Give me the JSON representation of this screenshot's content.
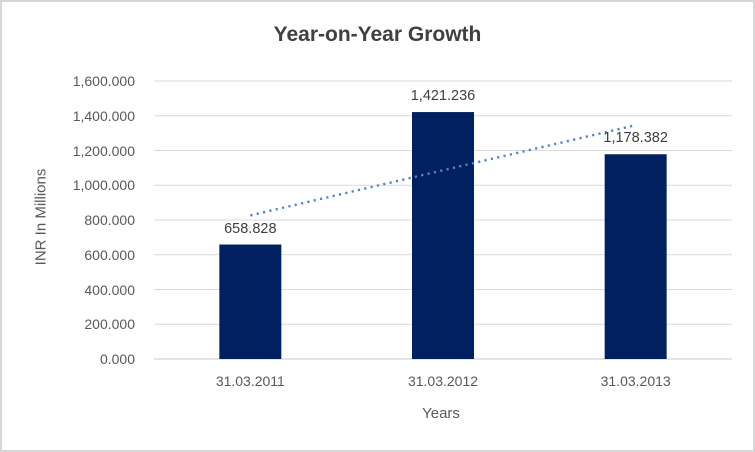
{
  "chart_data": {
    "type": "bar",
    "title": "Year-on-Year Growth",
    "xlabel": "Years",
    "ylabel": "INR In Millions",
    "categories": [
      "31.03.2011",
      "31.03.2012",
      "31.03.2013"
    ],
    "values": [
      658.828,
      1421.236,
      1178.382
    ],
    "data_labels": [
      "658.828",
      "1,421.236",
      "1,178.382"
    ],
    "ylim": [
      0,
      1600
    ],
    "ytick_step": 200,
    "ytick_labels": [
      "0.000",
      "200.000",
      "400.000",
      "600.000",
      "800.000",
      "1,000.000",
      "1,200.000",
      "1,400.000",
      "1,600.000"
    ],
    "grid": true,
    "legend": "none",
    "bar_color": "#002060",
    "trendline": {
      "type": "linear",
      "style": "dotted",
      "color": "#4e86c8",
      "start_value": 826.4,
      "end_value": 1345.9
    },
    "colors": {
      "title": "#404040",
      "axis_text": "#595959",
      "gridline": "#d9d9d9",
      "axis_line": "#c9c9c9",
      "data_label": "#404040",
      "chart_border": "#d6d6d6",
      "background": "#ffffff"
    }
  }
}
